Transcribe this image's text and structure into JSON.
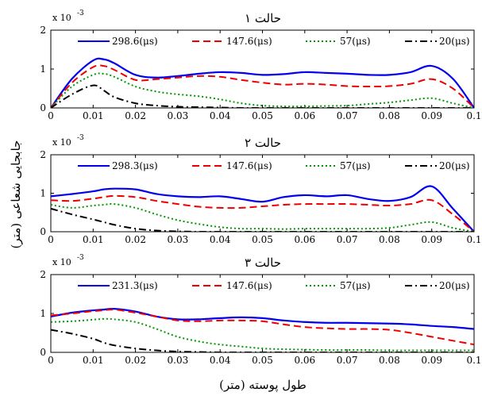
{
  "chart_data": {
    "type": "line",
    "xlabel": "طول پوسته (متر)",
    "ylabel": "جابجایی شعاعی (متر)",
    "exponent_label": "x 10",
    "exponent_power": "-3",
    "x_ticks": [
      "0",
      "0.01",
      "0.02",
      "0.03",
      "0.04",
      "0.05",
      "0.06",
      "0.07",
      "0.08",
      "0.09",
      "0.1"
    ],
    "y_ticks": [
      "0",
      "1",
      "2"
    ],
    "xlim": [
      0,
      0.1
    ],
    "ylim": [
      0,
      2
    ],
    "x": [
      0,
      0.005,
      0.01,
      0.0125,
      0.015,
      0.02,
      0.025,
      0.03,
      0.035,
      0.04,
      0.045,
      0.05,
      0.055,
      0.06,
      0.065,
      0.07,
      0.075,
      0.08,
      0.085,
      0.09,
      0.095,
      0.1
    ],
    "panels": [
      {
        "title": "حالت ۱",
        "series": [
          {
            "name": "298.6(μs)",
            "color": "#0000ee",
            "dash": "solid",
            "values": [
              0,
              0.75,
              1.22,
              1.25,
              1.15,
              0.85,
              0.78,
              0.82,
              0.88,
              0.92,
              0.9,
              0.85,
              0.87,
              0.92,
              0.9,
              0.88,
              0.85,
              0.85,
              0.92,
              1.08,
              0.75,
              0
            ]
          },
          {
            "name": "147.6(μs)",
            "color": "#ee0000",
            "dash": "dashed",
            "values": [
              0,
              0.65,
              1.05,
              1.08,
              0.98,
              0.72,
              0.74,
              0.78,
              0.82,
              0.8,
              0.72,
              0.65,
              0.6,
              0.62,
              0.6,
              0.56,
              0.55,
              0.56,
              0.62,
              0.74,
              0.5,
              0
            ]
          },
          {
            "name": "57(μs)",
            "color": "#009900",
            "dash": "dotted",
            "values": [
              0,
              0.55,
              0.85,
              0.88,
              0.8,
              0.55,
              0.42,
              0.35,
              0.3,
              0.22,
              0.12,
              0.06,
              0.04,
              0.04,
              0.05,
              0.06,
              0.1,
              0.14,
              0.2,
              0.25,
              0.12,
              0
            ]
          },
          {
            "name": "20(μs)",
            "color": "#000000",
            "dash": "dashdot",
            "values": [
              0,
              0.35,
              0.58,
              0.45,
              0.28,
              0.12,
              0.06,
              0.03,
              0.02,
              0.01,
              0,
              0,
              0,
              0,
              0,
              0,
              0,
              0,
              0,
              0,
              0,
              0
            ]
          }
        ]
      },
      {
        "title": "حالت ۲",
        "series": [
          {
            "name": "298.3(μs)",
            "color": "#0000ee",
            "dash": "solid",
            "values": [
              0.92,
              0.98,
              1.05,
              1.1,
              1.12,
              1.1,
              0.98,
              0.92,
              0.9,
              0.92,
              0.85,
              0.78,
              0.9,
              0.95,
              0.92,
              0.95,
              0.85,
              0.8,
              0.9,
              1.18,
              0.6,
              0
            ]
          },
          {
            "name": "147.6(μs)",
            "color": "#ee0000",
            "dash": "dashed",
            "values": [
              0.82,
              0.8,
              0.86,
              0.9,
              0.93,
              0.9,
              0.8,
              0.72,
              0.65,
              0.62,
              0.62,
              0.66,
              0.7,
              0.72,
              0.72,
              0.72,
              0.7,
              0.68,
              0.72,
              0.82,
              0.45,
              0
            ]
          },
          {
            "name": "57(μs)",
            "color": "#009900",
            "dash": "dotted",
            "values": [
              0.7,
              0.62,
              0.68,
              0.7,
              0.72,
              0.62,
              0.45,
              0.3,
              0.2,
              0.12,
              0.08,
              0.08,
              0.07,
              0.08,
              0.08,
              0.08,
              0.08,
              0.1,
              0.18,
              0.25,
              0.1,
              0
            ]
          },
          {
            "name": "20(μs)",
            "color": "#000000",
            "dash": "dashdot",
            "values": [
              0.6,
              0.45,
              0.32,
              0.25,
              0.18,
              0.08,
              0.03,
              0.01,
              0,
              0,
              0,
              0,
              0,
              0,
              0,
              0,
              0,
              0,
              0,
              0,
              0,
              0
            ]
          }
        ]
      },
      {
        "title": "حالت ۳",
        "series": [
          {
            "name": "231.3(μs)",
            "color": "#0000ee",
            "dash": "solid",
            "values": [
              0.92,
              1.02,
              1.08,
              1.1,
              1.12,
              1.05,
              0.92,
              0.85,
              0.85,
              0.88,
              0.9,
              0.88,
              0.82,
              0.78,
              0.76,
              0.76,
              0.75,
              0.74,
              0.72,
              0.68,
              0.65,
              0.6
            ]
          },
          {
            "name": "147.6(μs)",
            "color": "#ee0000",
            "dash": "dashed",
            "values": [
              0.95,
              1.0,
              1.06,
              1.08,
              1.1,
              1.02,
              0.92,
              0.82,
              0.8,
              0.82,
              0.82,
              0.8,
              0.72,
              0.65,
              0.62,
              0.6,
              0.6,
              0.58,
              0.5,
              0.4,
              0.3,
              0.2
            ]
          },
          {
            "name": "57(μs)",
            "color": "#009900",
            "dash": "dotted",
            "values": [
              0.78,
              0.8,
              0.84,
              0.86,
              0.85,
              0.78,
              0.6,
              0.4,
              0.28,
              0.2,
              0.15,
              0.1,
              0.08,
              0.07,
              0.06,
              0.06,
              0.06,
              0.05,
              0.05,
              0.05,
              0.05,
              0.05
            ]
          },
          {
            "name": "20(μs)",
            "color": "#000000",
            "dash": "dashdot",
            "values": [
              0.58,
              0.48,
              0.35,
              0.25,
              0.18,
              0.1,
              0.05,
              0.02,
              0.01,
              0,
              0,
              0,
              0,
              0,
              0,
              0,
              0,
              0,
              0,
              0,
              0,
              0
            ]
          }
        ]
      }
    ]
  }
}
